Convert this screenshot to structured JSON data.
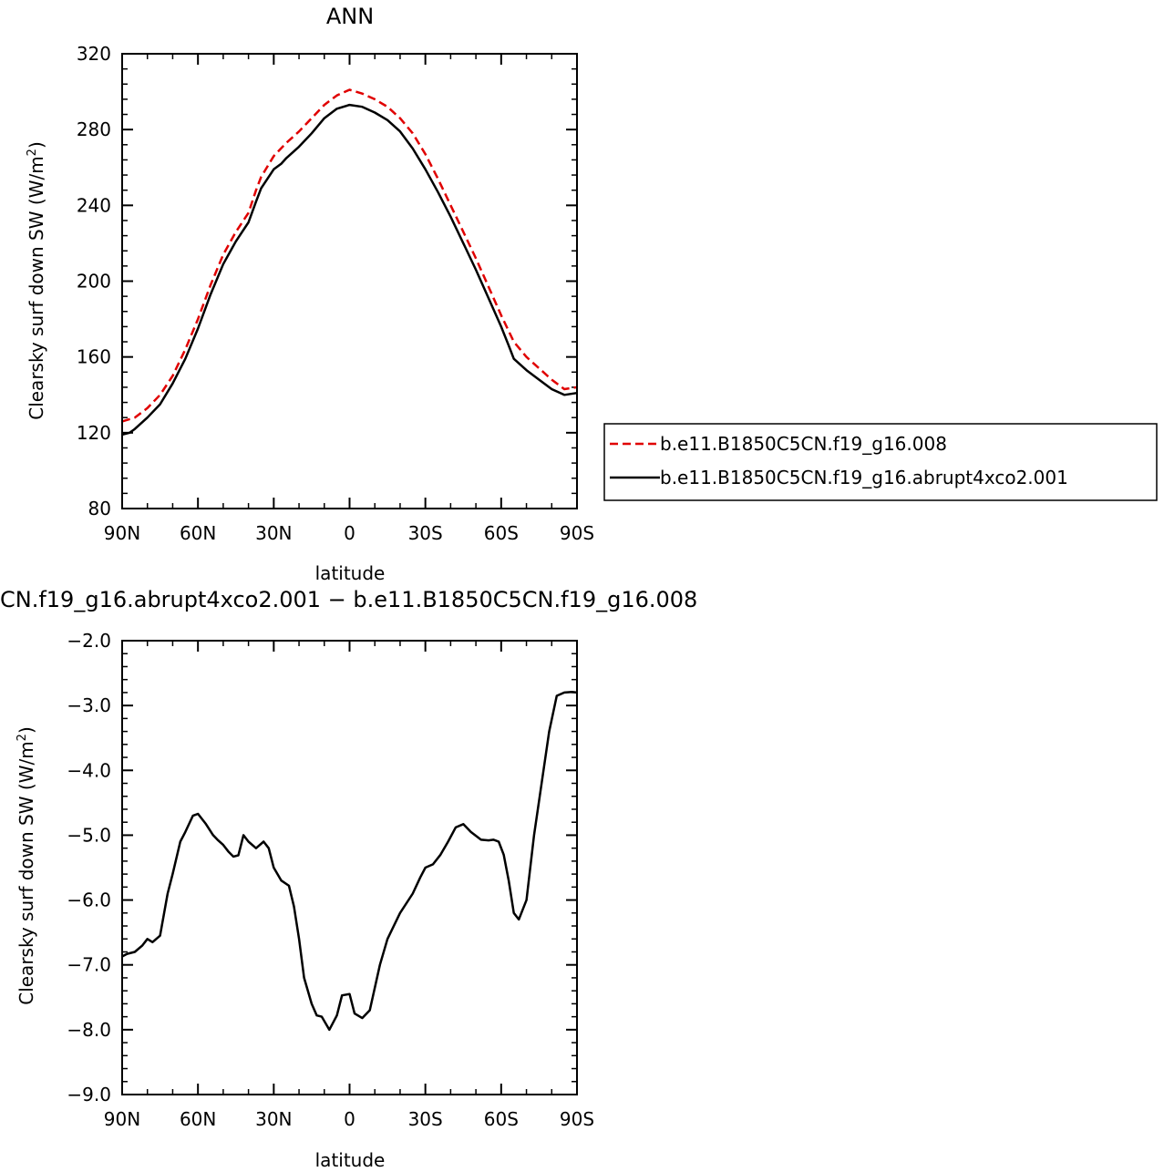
{
  "chart_data": [
    {
      "type": "line",
      "title": "ANN",
      "xlabel": "latitude",
      "ylabel": "Clearsky surf down SW (W/m",
      "ylabel_sup": "2",
      "ylabel_close": ")",
      "xlim": [
        90,
        -90
      ],
      "ylim": [
        80,
        320
      ],
      "xticks": [
        90,
        60,
        30,
        0,
        -30,
        -60,
        -90
      ],
      "xtick_labels": [
        "90N",
        "60N",
        "30N",
        "0",
        "30S",
        "60S",
        "90S"
      ],
      "yticks": [
        80,
        120,
        160,
        200,
        240,
        280,
        320
      ],
      "ytick_labels": [
        "80",
        "120",
        "160",
        "200",
        "240",
        "280",
        "320"
      ],
      "legend_position": "right",
      "series": [
        {
          "name": "b.e11.B1850C5CN.f19_g16.008",
          "color": "#e00000",
          "dash": "dashed",
          "x": [
            90,
            85,
            80,
            75,
            70,
            65,
            60,
            55,
            50,
            45,
            40,
            37,
            35,
            30,
            25,
            20,
            15,
            10,
            5,
            0,
            -5,
            -10,
            -15,
            -20,
            -25,
            -30,
            -35,
            -40,
            -45,
            -50,
            -55,
            -60,
            -65,
            -70,
            -75,
            -80,
            -85,
            -90
          ],
          "y": [
            126,
            128,
            133,
            140,
            150,
            164,
            180,
            198,
            214,
            226,
            236,
            248,
            255,
            266,
            273,
            279,
            286,
            293,
            298,
            301,
            299,
            296,
            292,
            286,
            278,
            267,
            254,
            240,
            226,
            212,
            197,
            182,
            168,
            160,
            154,
            148,
            143,
            144
          ]
        },
        {
          "name": "b.e11.B1850C5CN.f19_g16.abrupt4xco2.001",
          "color": "#000000",
          "dash": "solid",
          "x": [
            90,
            87,
            85,
            80,
            75,
            70,
            65,
            60,
            55,
            50,
            45,
            40,
            37,
            35,
            30,
            27,
            25,
            20,
            15,
            10,
            5,
            0,
            -5,
            -10,
            -15,
            -20,
            -25,
            -30,
            -35,
            -40,
            -45,
            -50,
            -55,
            -60,
            -63,
            -65,
            -70,
            -75,
            -80,
            -85,
            -90
          ],
          "y": [
            119,
            120,
            122,
            128,
            135,
            146,
            159,
            175,
            193,
            209,
            221,
            231,
            242,
            249,
            259,
            262,
            265,
            271,
            278,
            286,
            291,
            293,
            292,
            289,
            285,
            279,
            270,
            259,
            247,
            234,
            220,
            206,
            191,
            176,
            166,
            159,
            153,
            148,
            143,
            140,
            141
          ]
        }
      ]
    },
    {
      "type": "line",
      "title": "CN.f19_g16.abrupt4xco2.001 − b.e11.B1850C5CN.f19_g16.008",
      "xlabel": "latitude",
      "ylabel": "Clearsky surf down SW (W/m",
      "ylabel_sup": "2",
      "ylabel_close": ")",
      "xlim": [
        90,
        -90
      ],
      "ylim": [
        -9.0,
        -2.0
      ],
      "xticks": [
        90,
        60,
        30,
        0,
        -30,
        -60,
        -90
      ],
      "xtick_labels": [
        "90N",
        "60N",
        "30N",
        "0",
        "30S",
        "60S",
        "90S"
      ],
      "yticks": [
        -9.0,
        -8.0,
        -7.0,
        -6.0,
        -5.0,
        -4.0,
        -3.0,
        -2.0
      ],
      "ytick_labels": [
        "−9.0",
        "−8.0",
        "−7.0",
        "−6.0",
        "−5.0",
        "−4.0",
        "−3.0",
        "−2.0"
      ],
      "series": [
        {
          "color": "#000000",
          "dash": "solid",
          "x": [
            90,
            88,
            85,
            82,
            80,
            78,
            75,
            72,
            70,
            67,
            65,
            62,
            60,
            57,
            54,
            52,
            50,
            48,
            46,
            44,
            42,
            40,
            37,
            34,
            32,
            30,
            27,
            24,
            22,
            20,
            18,
            15,
            13,
            11,
            8,
            5,
            3,
            0,
            -2,
            -5,
            -8,
            -12,
            -15,
            -20,
            -25,
            -28,
            -30,
            -33,
            -36,
            -39,
            -42,
            -45,
            -48,
            -52,
            -55,
            -57,
            -59,
            -61,
            -63,
            -65,
            -67,
            -70,
            -73,
            -76,
            -79,
            -82,
            -85,
            -88,
            -90
          ],
          "y": [
            -6.87,
            -6.83,
            -6.8,
            -6.7,
            -6.6,
            -6.65,
            -6.55,
            -5.9,
            -5.6,
            -5.1,
            -4.95,
            -4.7,
            -4.67,
            -4.82,
            -5.0,
            -5.08,
            -5.15,
            -5.25,
            -5.33,
            -5.31,
            -5.0,
            -5.1,
            -5.2,
            -5.1,
            -5.2,
            -5.5,
            -5.7,
            -5.78,
            -6.1,
            -6.6,
            -7.2,
            -7.6,
            -7.78,
            -7.8,
            -8.0,
            -7.78,
            -7.47,
            -7.45,
            -7.75,
            -7.82,
            -7.7,
            -7.0,
            -6.6,
            -6.2,
            -5.9,
            -5.65,
            -5.5,
            -5.45,
            -5.3,
            -5.1,
            -4.88,
            -4.83,
            -4.95,
            -5.07,
            -5.08,
            -5.07,
            -5.1,
            -5.3,
            -5.7,
            -6.2,
            -6.3,
            -6.0,
            -5.0,
            -4.2,
            -3.4,
            -2.85,
            -2.8,
            -2.79,
            -2.8
          ]
        }
      ]
    }
  ]
}
